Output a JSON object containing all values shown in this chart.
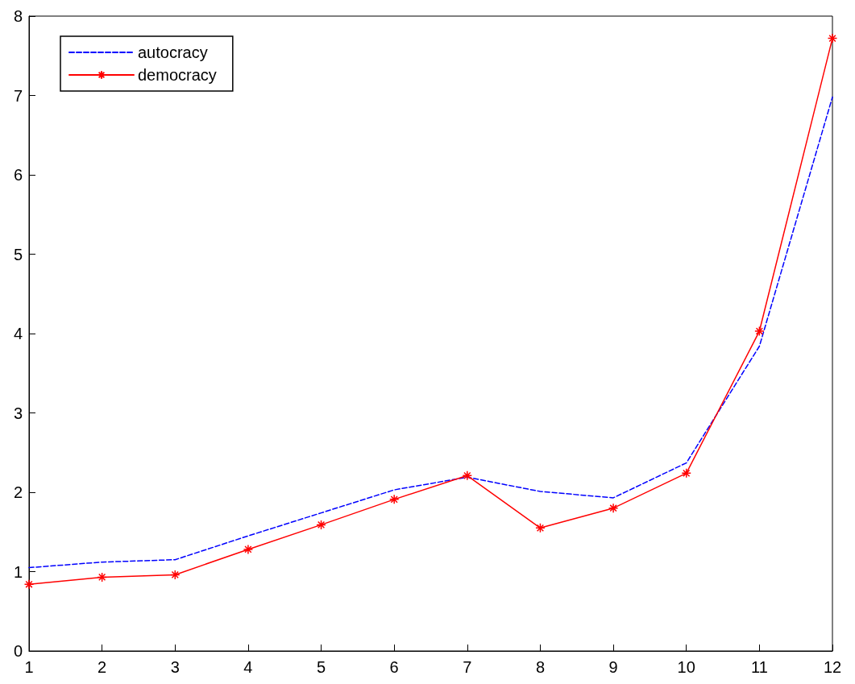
{
  "chart_data": {
    "type": "line",
    "x": [
      1,
      2,
      3,
      4,
      5,
      6,
      7,
      8,
      9,
      10,
      11,
      12
    ],
    "series": [
      {
        "name": "autocracy",
        "color": "#0000ff",
        "line_style": "dashed",
        "marker": "none",
        "values": [
          1.05,
          1.12,
          1.15,
          1.45,
          1.74,
          2.03,
          2.19,
          2.01,
          1.93,
          2.37,
          3.84,
          6.98
        ]
      },
      {
        "name": "democracy",
        "color": "#ff0000",
        "line_style": "solid",
        "marker": "cross",
        "values": [
          0.84,
          0.93,
          0.96,
          1.28,
          1.59,
          1.91,
          2.21,
          1.55,
          1.8,
          2.24,
          4.03,
          7.72
        ]
      }
    ],
    "xlim": [
      1,
      12
    ],
    "xticks": [
      1,
      2,
      3,
      4,
      5,
      6,
      7,
      8,
      9,
      10,
      11,
      12
    ],
    "ylim": [
      0,
      8
    ],
    "yticks": [
      0,
      1,
      2,
      3,
      4,
      5,
      6,
      7,
      8
    ],
    "grid": false,
    "legend": "top left"
  }
}
